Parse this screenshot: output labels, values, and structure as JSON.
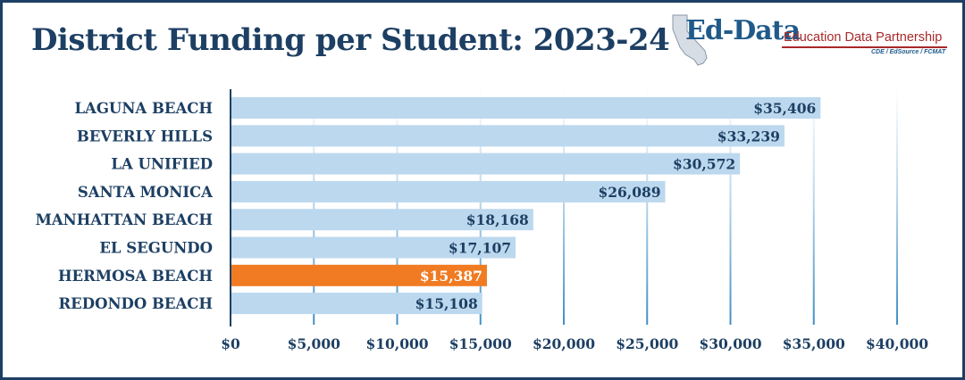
{
  "title": "District Funding per Student: 2023-24",
  "logo": {
    "mark": "Ed-Data",
    "name": "Education Data Partnership",
    "sources": "CDE / EdSource / FCMAT",
    "icon": "california-map-icon"
  },
  "colors": {
    "title": "#1d3f63",
    "bar": "#bcd8ee",
    "highlight_bar": "#f07b22",
    "gridline": "#3f8fc7",
    "axis": "#1d3f63"
  },
  "chart_data": {
    "type": "bar",
    "orientation": "horizontal",
    "title": "District Funding per Student: 2023-24",
    "categories": [
      "LAGUNA BEACH",
      "BEVERLY HILLS",
      "LA UNIFIED",
      "SANTA MONICA",
      "MANHATTAN BEACH",
      "EL SEGUNDO",
      "HERMOSA BEACH",
      "REDONDO BEACH"
    ],
    "values": [
      35406,
      33239,
      30572,
      26089,
      18168,
      17107,
      15387,
      15108
    ],
    "value_labels": [
      "$35,406",
      "$33,239",
      "$30,572",
      "$26,089",
      "$18,168",
      "$17,107",
      "$15,387",
      "$15,108"
    ],
    "highlight": "HERMOSA BEACH",
    "xlim": [
      0,
      40000
    ],
    "ticks": [
      0,
      5000,
      10000,
      15000,
      20000,
      25000,
      30000,
      35000,
      40000
    ],
    "tick_labels": [
      "$0",
      "$5,000",
      "$10,000",
      "$15,000",
      "$20,000",
      "$25,000",
      "$30,000",
      "$35,000",
      "$40,000"
    ],
    "xlabel": "",
    "ylabel": "",
    "grid": "vertical",
    "legend": "none"
  }
}
